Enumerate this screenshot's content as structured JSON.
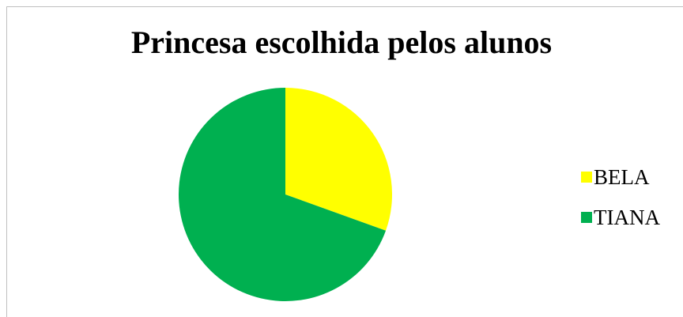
{
  "chart_data": {
    "type": "pie",
    "title": "Princesa escolhida pelos alunos",
    "legend_position": "right",
    "slices": [
      {
        "label": "BELA",
        "value": 30.5,
        "color": "#ffff00"
      },
      {
        "label": "TIANA",
        "value": 69.5,
        "color": "#00b050"
      }
    ]
  }
}
